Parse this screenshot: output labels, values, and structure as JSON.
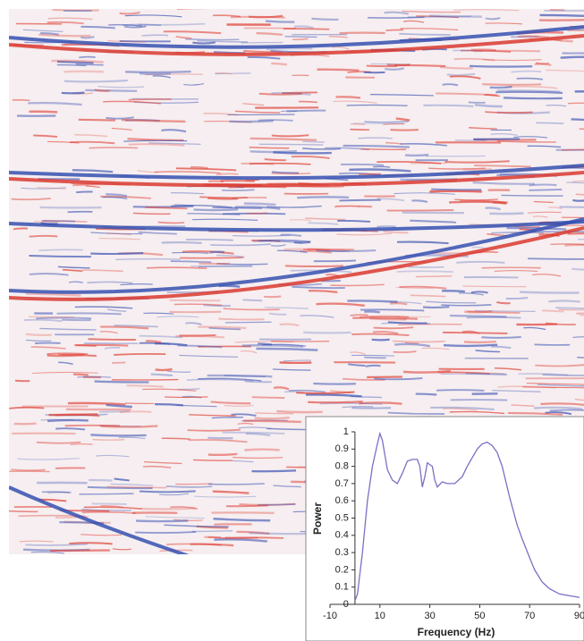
{
  "chart_data": {
    "type": "line",
    "x_label": "Frequency (Hz)",
    "y_label": "Power",
    "x": [
      0,
      1,
      3,
      5,
      7,
      9,
      10,
      11,
      13,
      15,
      17,
      19,
      21,
      23,
      25,
      26,
      27,
      28,
      29,
      31,
      32,
      33,
      35,
      37,
      40,
      43,
      45,
      47,
      49,
      51,
      53,
      55,
      57,
      59,
      62,
      65,
      67,
      70,
      72,
      75,
      78,
      82,
      86,
      90
    ],
    "series": [
      {
        "name": "Power",
        "color": "#7a70c4",
        "values": [
          0.02,
          0.06,
          0.3,
          0.6,
          0.8,
          0.93,
          0.99,
          0.95,
          0.78,
          0.72,
          0.7,
          0.76,
          0.83,
          0.84,
          0.84,
          0.8,
          0.68,
          0.74,
          0.82,
          0.8,
          0.72,
          0.68,
          0.71,
          0.7,
          0.7,
          0.74,
          0.8,
          0.85,
          0.9,
          0.93,
          0.94,
          0.92,
          0.88,
          0.8,
          0.62,
          0.46,
          0.38,
          0.27,
          0.2,
          0.13,
          0.09,
          0.06,
          0.05,
          0.04
        ]
      }
    ],
    "xlim": [
      -10,
      90
    ],
    "ylim": [
      0,
      1
    ],
    "xticks": [
      -10,
      10,
      30,
      50,
      70,
      90
    ],
    "yticks": [
      0,
      0.1,
      0.2,
      0.3,
      0.4,
      0.5,
      0.6,
      0.7,
      0.8,
      0.9,
      1
    ]
  }
}
